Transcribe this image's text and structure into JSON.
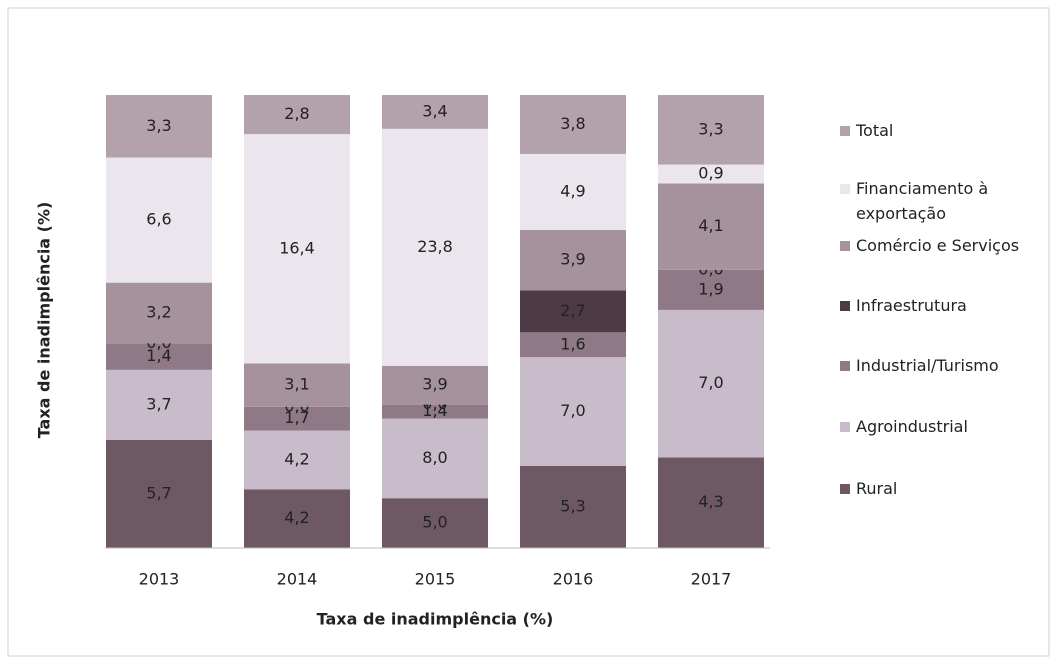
{
  "chart_data": {
    "type": "stacked_bar_100",
    "categories": [
      "2013",
      "2014",
      "2015",
      "2016",
      "2017"
    ],
    "xlabel": "Taxa de inadimplência (%)",
    "ylabel": "Taxa de inadimplência (%)",
    "series": [
      {
        "name": "Rural",
        "color": "#6e5864",
        "values": [
          5.7,
          4.2,
          5.0,
          5.3,
          4.3
        ],
        "value_labels": [
          "5,7",
          "4,2",
          "5,0",
          "5,3",
          "4,3"
        ]
      },
      {
        "name": "Agroindustrial",
        "color": "#c8bcca",
        "values": [
          3.7,
          4.2,
          8.0,
          7.0,
          7.0
        ],
        "value_labels": [
          "3,7",
          "4,2",
          "8,0",
          "7,0",
          "7,0"
        ]
      },
      {
        "name": "Industrial/Turismo",
        "color": "#8f7986",
        "values": [
          1.4,
          1.7,
          1.4,
          1.6,
          1.9
        ],
        "value_labels": [
          "1,4",
          "1,7",
          "1,4",
          "1,6",
          "1,9"
        ]
      },
      {
        "name": "Infraestrutura",
        "color": "#4d3a44",
        "values": [
          0.0,
          0.0,
          0.0,
          2.7,
          0.0
        ],
        "value_labels": [
          "0,0",
          "0,0",
          "0,0",
          "2,7",
          "0,0"
        ]
      },
      {
        "name": "Comércio e Serviços",
        "color": "#a6929d",
        "values": [
          3.2,
          3.1,
          3.9,
          3.9,
          4.1
        ],
        "value_labels": [
          "3,2",
          "3,1",
          "3,9",
          "3,9",
          "4,1"
        ]
      },
      {
        "name": "Financiamento à exportação",
        "color": "#ebe6ed",
        "values": [
          6.6,
          16.4,
          23.8,
          4.9,
          0.9
        ],
        "value_labels": [
          "6,6",
          "16,4",
          "23,8",
          "4,9",
          "0,9"
        ]
      },
      {
        "name": "Total",
        "color": "#b3a1ab",
        "values": [
          3.3,
          2.8,
          3.4,
          3.8,
          3.3
        ],
        "value_labels": [
          "3,3",
          "2,8",
          "3,4",
          "3,8",
          "3,3"
        ]
      }
    ],
    "legend": "right"
  }
}
